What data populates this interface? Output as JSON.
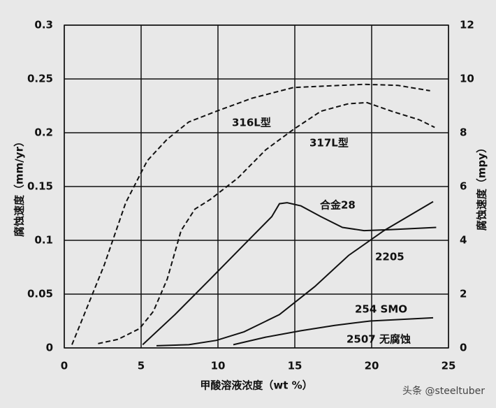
{
  "chart_data": {
    "type": "line",
    "xlabel": "甲酸溶液浓度（wt %）",
    "ylabel": "腐蚀速度（mm/yr）",
    "y2label": "腐蚀速度（mpy）",
    "xlim": [
      0,
      25
    ],
    "xticks": [
      0,
      5,
      10,
      15,
      20,
      25
    ],
    "ylim": [
      0,
      0.3
    ],
    "yticks": [
      0,
      0.05,
      0.1,
      0.15,
      0.2,
      0.25,
      0.3
    ],
    "y2lim": [
      0,
      12
    ],
    "y2ticks": [
      0,
      2,
      4,
      6,
      8,
      10,
      12
    ],
    "grid": true,
    "series": [
      {
        "name": "316L型",
        "color": "#111111",
        "style": "dashed",
        "x": [
          0.5,
          2.6,
          4,
          5.4,
          6.7,
          8.1,
          9.9,
          12.2,
          14.9,
          19.5,
          21.7,
          23.8
        ],
        "values": [
          0.003,
          0.077,
          0.135,
          0.174,
          0.194,
          0.21,
          0.22,
          0.232,
          0.242,
          0.245,
          0.244,
          0.239
        ]
      },
      {
        "name": "317L型",
        "color": "#111111",
        "style": "dashed",
        "x": [
          2.2,
          3.5,
          4.9,
          5.8,
          6.7,
          7.6,
          8.5,
          9.5,
          11.3,
          13.1,
          14.9,
          16.7,
          18.5,
          19.7,
          21.3,
          23.1,
          24.1
        ],
        "values": [
          0.004,
          0.008,
          0.018,
          0.034,
          0.064,
          0.109,
          0.129,
          0.138,
          0.158,
          0.184,
          0.203,
          0.22,
          0.227,
          0.228,
          0.22,
          0.212,
          0.205
        ]
      },
      {
        "name": "合金28",
        "color": "#111111",
        "style": "solid",
        "x": [
          5.1,
          7.2,
          9.5,
          11.7,
          13.5,
          14,
          14.5,
          15.4,
          16.7,
          18.1,
          19.5,
          21.3,
          24.2
        ],
        "values": [
          0.003,
          0.031,
          0.064,
          0.096,
          0.122,
          0.134,
          0.135,
          0.132,
          0.122,
          0.112,
          0.109,
          0.11,
          0.112
        ]
      },
      {
        "name": "2205",
        "color": "#111111",
        "style": "solid",
        "x": [
          6,
          8.1,
          9.9,
          11.7,
          14,
          16.3,
          18.5,
          20.8,
          24
        ],
        "values": [
          0.002,
          0.003,
          0.007,
          0.015,
          0.031,
          0.057,
          0.086,
          0.109,
          0.136
        ]
      },
      {
        "name": "254 SMO",
        "color": "#111111",
        "style": "solid",
        "x": [
          11,
          13.1,
          15.4,
          17.6,
          19.9,
          24
        ],
        "values": [
          0.003,
          0.01,
          0.016,
          0.021,
          0.025,
          0.028
        ]
      }
    ],
    "annotations": [
      "2507 无腐蚀"
    ],
    "watermark": "头条 @steeltuber"
  }
}
